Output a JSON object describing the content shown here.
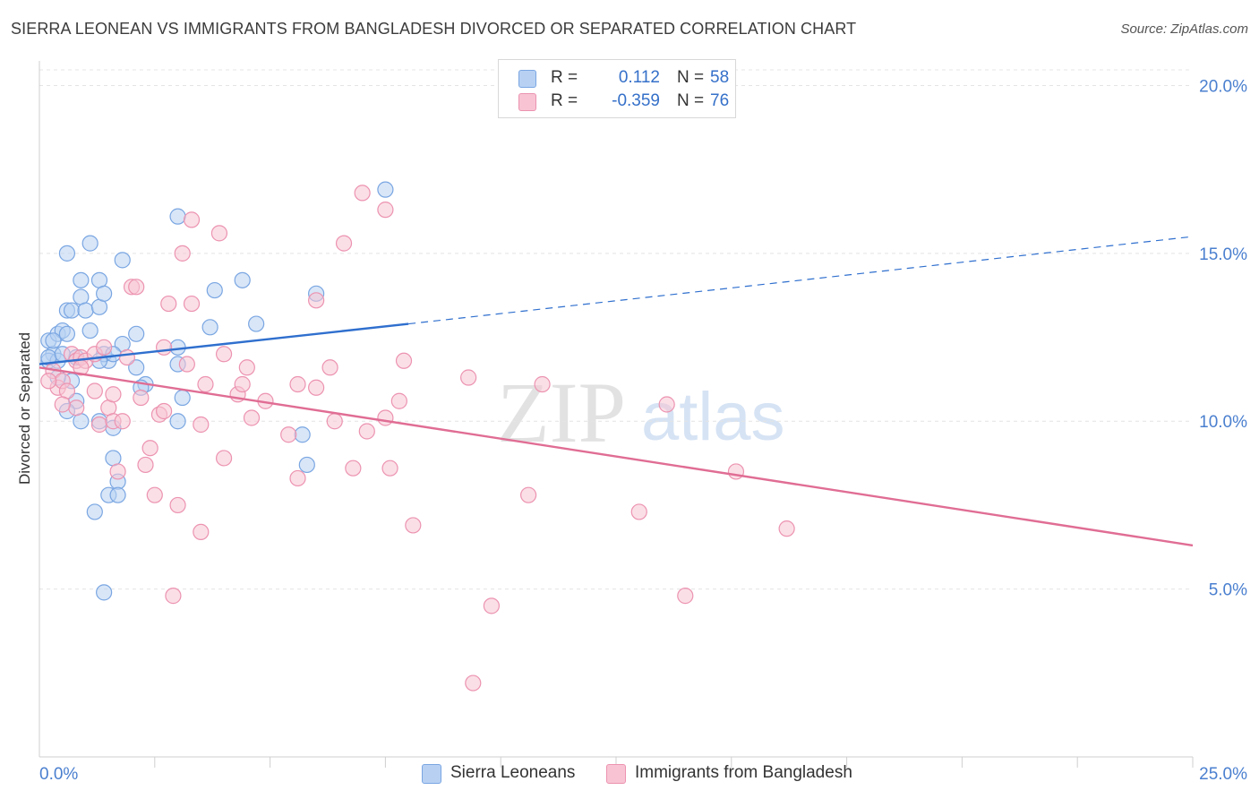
{
  "title": "SIERRA LEONEAN VS IMMIGRANTS FROM BANGLADESH DIVORCED OR SEPARATED CORRELATION CHART",
  "source": "Source: ZipAtlas.com",
  "watermark": {
    "zip": "ZIP",
    "atlas": "atlas"
  },
  "legend": {
    "r_label": "R =",
    "n_label": "N =",
    "rows": [
      {
        "r": "0.112",
        "n": "58",
        "fill": "#b8d1f3",
        "stroke": "#7aa6e2"
      },
      {
        "r": "-0.359",
        "n": "76",
        "fill": "#f8c4d4",
        "stroke": "#ec93b0"
      }
    ]
  },
  "chart_data": {
    "type": "scatter",
    "title": "SIERRA LEONEAN VS IMMIGRANTS FROM BANGLADESH DIVORCED OR SEPARATED CORRELATION CHART",
    "xlabel": "",
    "ylabel": "Divorced or Separated",
    "xlim": [
      0,
      25
    ],
    "ylim": [
      0,
      21
    ],
    "x_tick_labels": [
      "0.0%",
      "25.0%"
    ],
    "y_ticks": [
      5,
      10,
      15,
      20
    ],
    "y_tick_labels": [
      "5.0%",
      "10.0%",
      "15.0%",
      "20.0%"
    ],
    "grid": true,
    "legend_position": "top-center",
    "series": [
      {
        "name": "Sierra Leoneans",
        "color": "#7aa6e2",
        "fill": "#b8d1f3",
        "line_color": "#2f6fce",
        "trend": {
          "x": [
            0,
            8
          ],
          "y": [
            11.7,
            12.9
          ],
          "dashed_x": [
            8,
            25
          ],
          "dashed_y": [
            12.9,
            15.5
          ]
        },
        "points": [
          [
            0.2,
            12.4
          ],
          [
            0.3,
            12.0
          ],
          [
            0.2,
            11.8
          ],
          [
            0.4,
            12.6
          ],
          [
            0.5,
            12.7
          ],
          [
            0.6,
            13.3
          ],
          [
            0.4,
            11.8
          ],
          [
            0.7,
            13.3
          ],
          [
            0.6,
            12.6
          ],
          [
            0.9,
            13.7
          ],
          [
            0.6,
            15.0
          ],
          [
            1.1,
            15.3
          ],
          [
            0.9,
            14.2
          ],
          [
            1.3,
            14.2
          ],
          [
            1.0,
            13.3
          ],
          [
            1.1,
            12.7
          ],
          [
            0.8,
            11.9
          ],
          [
            0.7,
            11.2
          ],
          [
            1.3,
            13.4
          ],
          [
            1.4,
            13.8
          ],
          [
            1.8,
            14.8
          ],
          [
            1.8,
            12.3
          ],
          [
            1.5,
            11.8
          ],
          [
            0.8,
            10.6
          ],
          [
            0.6,
            10.3
          ],
          [
            0.9,
            10.0
          ],
          [
            1.3,
            10.0
          ],
          [
            1.6,
            9.8
          ],
          [
            1.6,
            8.9
          ],
          [
            1.7,
            8.2
          ],
          [
            1.5,
            7.8
          ],
          [
            1.7,
            7.8
          ],
          [
            1.2,
            7.3
          ],
          [
            1.4,
            4.9
          ],
          [
            2.1,
            12.6
          ],
          [
            2.1,
            11.6
          ],
          [
            2.3,
            11.1
          ],
          [
            3.0,
            16.1
          ],
          [
            3.0,
            12.2
          ],
          [
            3.0,
            11.7
          ],
          [
            3.1,
            10.7
          ],
          [
            3.0,
            10.0
          ],
          [
            3.8,
            13.9
          ],
          [
            3.7,
            12.8
          ],
          [
            4.4,
            14.2
          ],
          [
            4.7,
            12.9
          ],
          [
            6.0,
            13.8
          ],
          [
            5.7,
            9.6
          ],
          [
            5.8,
            8.7
          ],
          [
            7.5,
            16.9
          ],
          [
            0.4,
            11.3
          ],
          [
            0.2,
            11.9
          ],
          [
            0.3,
            12.4
          ],
          [
            1.4,
            12.0
          ],
          [
            1.6,
            12.0
          ],
          [
            2.2,
            11.0
          ],
          [
            0.5,
            12.0
          ],
          [
            1.3,
            11.8
          ]
        ]
      },
      {
        "name": "Immigrants from Bangladesh",
        "color": "#ec93b0",
        "fill": "#f8c4d4",
        "line_color": "#e06d94",
        "trend": {
          "x": [
            0,
            25
          ],
          "y": [
            11.6,
            6.3
          ]
        },
        "points": [
          [
            0.3,
            11.5
          ],
          [
            0.4,
            11.0
          ],
          [
            0.5,
            11.2
          ],
          [
            0.2,
            11.2
          ],
          [
            0.6,
            10.9
          ],
          [
            0.7,
            12.0
          ],
          [
            0.8,
            11.8
          ],
          [
            0.9,
            11.9
          ],
          [
            1.0,
            11.8
          ],
          [
            1.2,
            12.0
          ],
          [
            1.4,
            12.2
          ],
          [
            1.2,
            10.9
          ],
          [
            0.8,
            10.4
          ],
          [
            1.5,
            10.4
          ],
          [
            1.3,
            9.9
          ],
          [
            1.6,
            10.0
          ],
          [
            1.8,
            10.0
          ],
          [
            1.7,
            8.5
          ],
          [
            2.0,
            14.0
          ],
          [
            2.1,
            14.0
          ],
          [
            2.2,
            10.7
          ],
          [
            2.4,
            9.2
          ],
          [
            2.3,
            8.7
          ],
          [
            2.5,
            7.8
          ],
          [
            2.6,
            10.2
          ],
          [
            2.7,
            10.3
          ],
          [
            2.7,
            12.2
          ],
          [
            2.8,
            13.5
          ],
          [
            3.1,
            15.0
          ],
          [
            3.2,
            11.7
          ],
          [
            3.3,
            13.5
          ],
          [
            3.3,
            16.0
          ],
          [
            3.0,
            7.5
          ],
          [
            3.5,
            9.9
          ],
          [
            3.5,
            6.7
          ],
          [
            3.6,
            11.1
          ],
          [
            3.9,
            15.6
          ],
          [
            4.0,
            12.0
          ],
          [
            4.0,
            8.9
          ],
          [
            4.3,
            10.8
          ],
          [
            4.4,
            11.1
          ],
          [
            4.5,
            11.6
          ],
          [
            4.6,
            10.1
          ],
          [
            4.9,
            10.6
          ],
          [
            5.4,
            9.6
          ],
          [
            5.6,
            8.3
          ],
          [
            5.6,
            11.1
          ],
          [
            6.0,
            13.6
          ],
          [
            6.0,
            11.0
          ],
          [
            6.3,
            11.6
          ],
          [
            6.4,
            10.0
          ],
          [
            6.6,
            15.3
          ],
          [
            6.8,
            8.6
          ],
          [
            7.0,
            16.8
          ],
          [
            7.1,
            9.7
          ],
          [
            7.5,
            16.3
          ],
          [
            7.5,
            10.1
          ],
          [
            7.6,
            8.6
          ],
          [
            7.8,
            10.6
          ],
          [
            7.9,
            11.8
          ],
          [
            8.1,
            6.9
          ],
          [
            9.3,
            11.3
          ],
          [
            9.8,
            4.5
          ],
          [
            10.6,
            7.8
          ],
          [
            10.9,
            11.1
          ],
          [
            13.0,
            7.3
          ],
          [
            13.6,
            10.5
          ],
          [
            14.0,
            4.8
          ],
          [
            15.1,
            8.5
          ],
          [
            16.2,
            6.8
          ],
          [
            9.4,
            2.2
          ],
          [
            2.9,
            4.8
          ],
          [
            1.6,
            10.8
          ],
          [
            0.9,
            11.6
          ],
          [
            1.9,
            11.9
          ],
          [
            0.5,
            10.5
          ]
        ]
      }
    ]
  }
}
